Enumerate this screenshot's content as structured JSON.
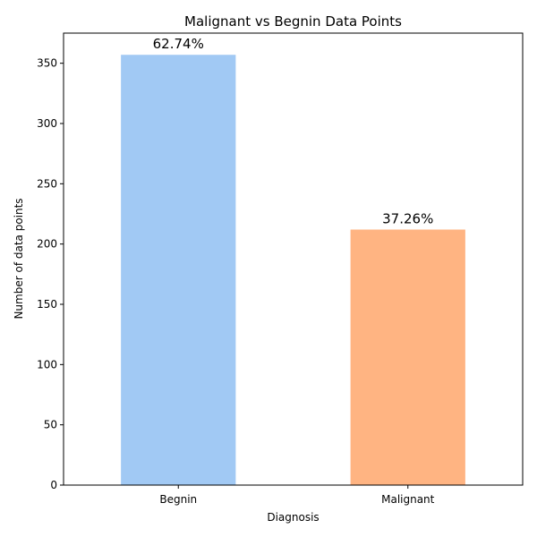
{
  "chart_data": {
    "type": "bar",
    "title": "Malignant vs Begnin Data Points",
    "xlabel": "Diagnosis",
    "ylabel": "Number of data points",
    "categories": [
      "Begnin",
      "Malignant"
    ],
    "values": [
      357,
      212
    ],
    "data_labels": [
      "62.74%",
      "37.26%"
    ],
    "colors": [
      "#a1c9f4",
      "#ffb482"
    ],
    "ylim": [
      0,
      375
    ],
    "yticks": [
      0,
      50,
      100,
      150,
      200,
      250,
      300,
      350
    ],
    "grid": false,
    "legend": "none"
  }
}
